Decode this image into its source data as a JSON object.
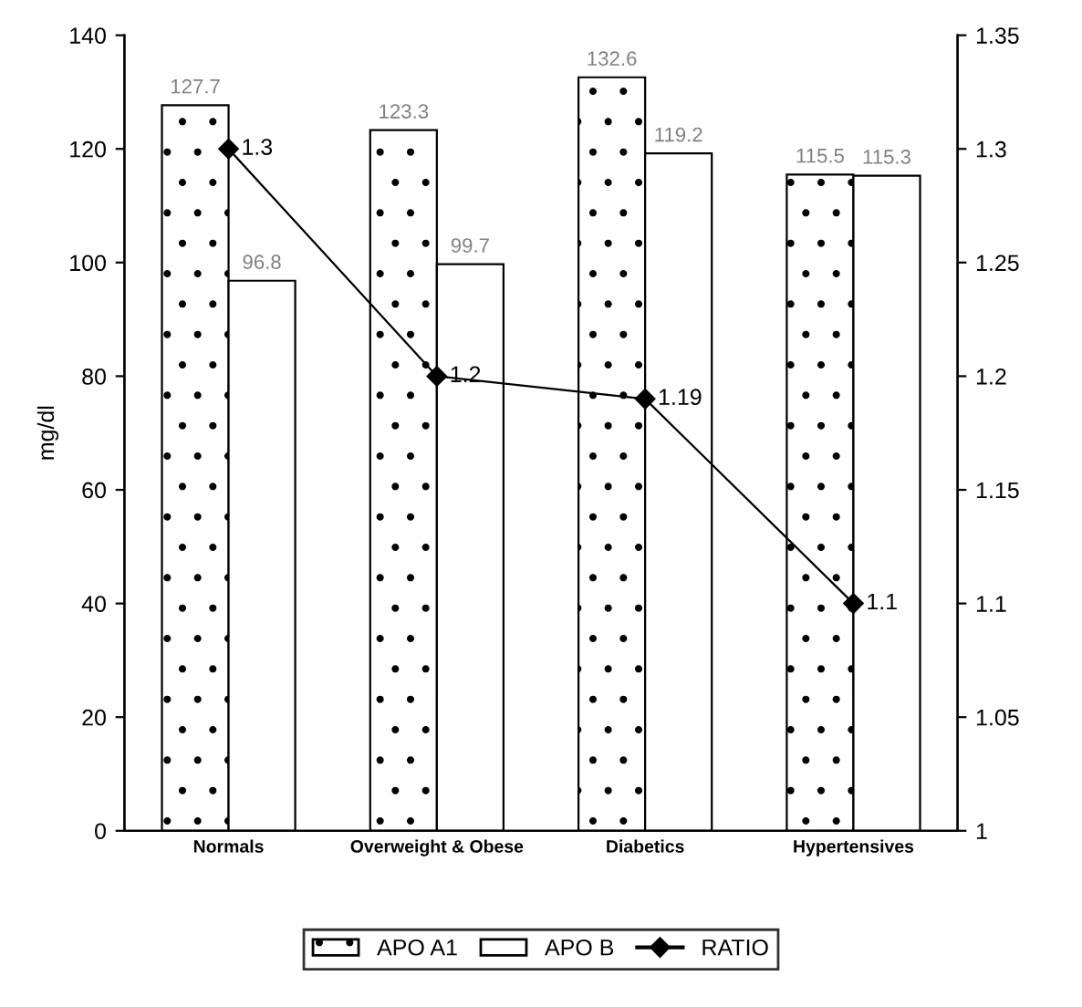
{
  "chart_data": {
    "type": "bar",
    "ylabel": "mg/dl",
    "categories": [
      "Normals",
      "Overweight & Obese",
      "Diabetics",
      "Hypertensives"
    ],
    "series": [
      {
        "name": "APO A1",
        "color": "#000000",
        "values": [
          127.7,
          123.3,
          132.6,
          115.5
        ]
      },
      {
        "name": "APO B",
        "color": "#ffffff",
        "values": [
          96.8,
          99.7,
          119.2,
          115.3
        ]
      },
      {
        "name": "RATIO",
        "color": "#000000",
        "type": "line",
        "axis": "y2",
        "values": [
          1.3,
          1.2,
          1.19,
          1.1
        ]
      }
    ],
    "ylim": [
      0,
      140
    ],
    "yticks": [
      0,
      20,
      40,
      60,
      80,
      100,
      120,
      140
    ],
    "y2lim": [
      1,
      1.35
    ],
    "y2ticks": [
      1,
      1.05,
      1.1,
      1.15,
      1.2,
      1.25,
      1.3,
      1.35
    ],
    "data_labels": true,
    "marker": "diamond",
    "line_style": "solid",
    "grid": false,
    "legend": "bottom"
  }
}
